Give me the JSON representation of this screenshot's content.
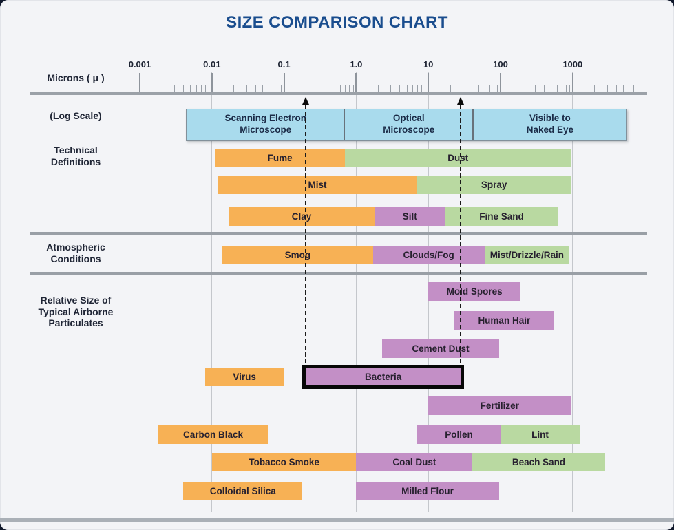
{
  "chart_data": {
    "type": "bar",
    "variant": "horizontal-log-range-chart",
    "title": "SIZE COMPARISON CHART",
    "units": "microns",
    "x_axis": {
      "label": "Microns ( μ )",
      "note": "(Log Scale)",
      "scale": "log",
      "xlim": [
        0.001,
        1000
      ],
      "ticks": [
        {
          "label": "0.001",
          "value": 0.001
        },
        {
          "label": "0.01",
          "value": 0.01
        },
        {
          "label": "0.1",
          "value": 0.1
        },
        {
          "label": "1.0",
          "value": 1
        },
        {
          "label": "10",
          "value": 10
        },
        {
          "label": "100",
          "value": 100
        },
        {
          "label": "1000",
          "value": 1000
        }
      ],
      "grid": true
    },
    "detection_bands": [
      {
        "label": "Scanning Electron\nMicroscope",
        "min_microns": 0.0044,
        "max_microns": 0.67
      },
      {
        "label": "Optical\nMicroscope",
        "min_microns": 0.67,
        "max_microns": 41
      },
      {
        "label": "Visible to\nNaked Eye",
        "min_microns": 41,
        "max_microns": 5500
      }
    ],
    "sections": [
      {
        "name": "Technical\nDefinitions",
        "rows": [
          [
            {
              "label": "Fume",
              "color": "orange",
              "min_microns": 0.011,
              "max_microns": 0.7
            },
            {
              "label": "Dust",
              "color": "green",
              "min_microns": 0.7,
              "max_microns": 950
            }
          ],
          [
            {
              "label": "Mist",
              "color": "orange",
              "min_microns": 0.012,
              "max_microns": 7
            },
            {
              "label": "Spray",
              "color": "green",
              "min_microns": 7,
              "max_microns": 950
            }
          ],
          [
            {
              "label": "Clay",
              "color": "orange",
              "min_microns": 0.017,
              "max_microns": 1.8
            },
            {
              "label": "Silt",
              "color": "purple",
              "min_microns": 1.8,
              "max_microns": 17
            },
            {
              "label": "Fine Sand",
              "color": "green",
              "min_microns": 17,
              "max_microns": 630
            }
          ]
        ]
      },
      {
        "name": "Atmospheric\nConditions",
        "rows": [
          [
            {
              "label": "Smog",
              "color": "orange",
              "min_microns": 0.014,
              "max_microns": 1.7
            },
            {
              "label": "Clouds/Fog",
              "color": "purple",
              "min_microns": 1.7,
              "max_microns": 60
            },
            {
              "label": "Mist/Drizzle/Rain",
              "color": "green",
              "min_microns": 60,
              "max_microns": 900
            }
          ]
        ]
      },
      {
        "name": "Relative Size of\nTypical Airborne\nParticulates",
        "rows": [
          [
            {
              "label": "Mold Spores",
              "color": "purple",
              "min_microns": 10,
              "max_microns": 190
            }
          ],
          [
            {
              "label": "Human Hair",
              "color": "purple",
              "min_microns": 23,
              "max_microns": 550
            }
          ],
          [
            {
              "label": "Cement Dust",
              "color": "purple",
              "min_microns": 2.3,
              "max_microns": 95
            }
          ],
          [
            {
              "label": "Virus",
              "color": "orange",
              "min_microns": 0.008,
              "max_microns": 0.1
            },
            {
              "label": "Bacteria",
              "color": "purple",
              "min_microns": 0.2,
              "max_microns": 28,
              "highlight": true
            }
          ],
          [
            {
              "label": "Fertilizer",
              "color": "purple",
              "min_microns": 10,
              "max_microns": 950
            }
          ],
          [
            {
              "label": "Carbon Black",
              "color": "orange",
              "min_microns": 0.0018,
              "max_microns": 0.06
            },
            {
              "label": "Pollen",
              "color": "purple",
              "min_microns": 7,
              "max_microns": 100
            },
            {
              "label": "Lint",
              "color": "green",
              "min_microns": 100,
              "max_microns": 1250
            }
          ],
          [
            {
              "label": "Tobacco Smoke",
              "color": "orange",
              "min_microns": 0.01,
              "max_microns": 1
            },
            {
              "label": "Coal Dust",
              "color": "purple",
              "min_microns": 1,
              "max_microns": 41
            },
            {
              "label": "Beach Sand",
              "color": "green",
              "min_microns": 41,
              "max_microns": 2800
            }
          ],
          [
            {
              "label": "Colloidal Silica",
              "color": "orange",
              "min_microns": 0.004,
              "max_microns": 0.18
            },
            {
              "label": "Milled Flour",
              "color": "purple",
              "min_microns": 1,
              "max_microns": 95
            }
          ]
        ]
      }
    ],
    "bacteria_range_markers_microns": [
      0.2,
      28
    ],
    "legend_position": "none",
    "colors": {
      "orange": "#f7b155",
      "green": "#b9d9a1",
      "purple": "#c38fc6",
      "microscope_blue": "#a9dbed",
      "title_blue": "#1a4d8e",
      "text_dark": "#202636",
      "axis_gray": "#9ba1a8",
      "background": "#f3f4f7"
    }
  }
}
